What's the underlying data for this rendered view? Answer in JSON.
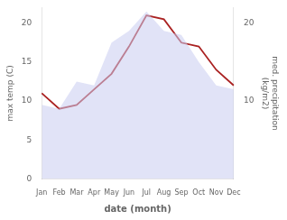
{
  "chart_data": {
    "type": "line",
    "xlabel": "date (month)",
    "ylabel": "max temp (C)",
    "y2label": "med. precipitation\n(kg/m2)",
    "categories": [
      "Jan",
      "Feb",
      "Mar",
      "Apr",
      "May",
      "Jun",
      "Jul",
      "Aug",
      "Sep",
      "Oct",
      "Nov",
      "Dec"
    ],
    "series": [
      {
        "type": "area",
        "color": "#c8ccf0",
        "values": [
          9.5,
          9.0,
          12.5,
          12.0,
          17.5,
          19.0,
          21.5,
          19.0,
          18.5,
          15.0,
          12.0,
          11.5
        ]
      },
      {
        "type": "line",
        "color": "#aa2222",
        "axis": "y2",
        "values": [
          11.0,
          9.0,
          9.5,
          11.5,
          13.5,
          17.0,
          21.0,
          20.5,
          17.5,
          17.0,
          14.0,
          12.0
        ]
      }
    ],
    "ylim": [
      0,
      22
    ],
    "yticks": [
      0,
      5,
      10,
      15,
      20
    ],
    "y2lim": [
      0,
      22
    ],
    "y2ticks": [
      10,
      20
    ],
    "grid": false
  }
}
